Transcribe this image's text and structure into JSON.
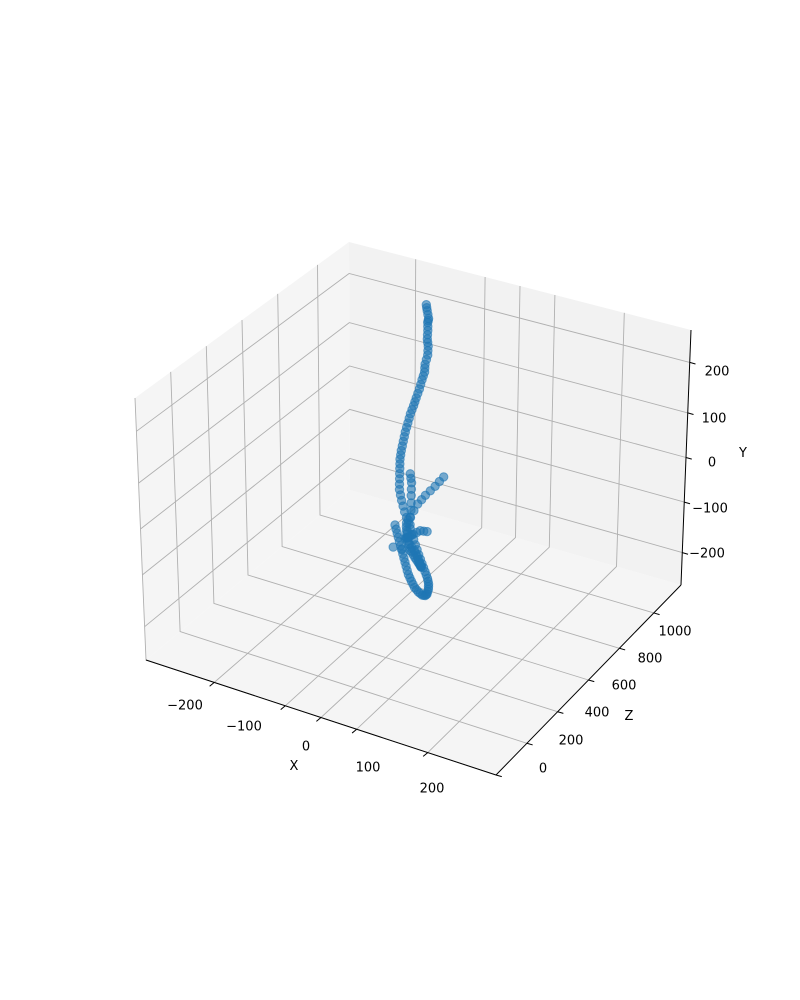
{
  "chart_data": {
    "type": "scatter",
    "projection": "3d",
    "title": "",
    "xlabel": "X",
    "ylabel": "Y",
    "zlabel": "Z",
    "x_ticks": [
      "−200",
      "−100",
      "0",
      "100",
      "200"
    ],
    "y_ticks": [
      "−200",
      "−100",
      "0",
      "100",
      "200"
    ],
    "z_ticks": [
      "0",
      "200",
      "400",
      "600",
      "800",
      "1000"
    ],
    "colors": {
      "points": "#1f77b4",
      "pane_back": "#f2f2f2",
      "pane_floor": "#f5f5f5",
      "grid": "#b0b0b0"
    },
    "grid": true,
    "series": [
      {
        "points": [
          [
            -110,
            240,
            30
          ],
          [
            -100,
            240,
            60
          ],
          [
            -92,
            232,
            80
          ],
          [
            -85,
            235,
            110
          ],
          [
            -75,
            232,
            145
          ],
          [
            -66,
            228,
            180
          ],
          [
            -56,
            225,
            210
          ],
          [
            -47,
            220,
            245
          ],
          [
            -40,
            215,
            285
          ],
          [
            -31,
            212,
            320
          ],
          [
            -24,
            210,
            360
          ],
          [
            -17,
            205,
            400
          ],
          [
            -11,
            200,
            440
          ],
          [
            -4,
            198,
            480
          ],
          [
            2,
            195,
            520
          ],
          [
            9,
            190,
            560
          ],
          [
            16,
            185,
            600
          ],
          [
            24,
            180,
            640
          ],
          [
            32,
            175,
            680
          ],
          [
            41,
            172,
            720
          ],
          [
            52,
            168,
            760
          ],
          [
            63,
            162,
            800
          ],
          [
            74,
            155,
            840
          ],
          [
            86,
            145,
            870
          ],
          [
            98,
            132,
            895
          ],
          [
            110,
            118,
            915
          ],
          [
            120,
            102,
            930
          ],
          [
            128,
            84,
            938
          ],
          [
            134,
            65,
            940
          ],
          [
            138,
            45,
            935
          ],
          [
            140,
            25,
            925
          ],
          [
            140,
            5,
            910
          ],
          [
            136,
            -15,
            890
          ],
          [
            130,
            -35,
            870
          ],
          [
            122,
            -55,
            850
          ],
          [
            112,
            -70,
            825
          ],
          [
            100,
            -82,
            800
          ],
          [
            85,
            -90,
            770
          ],
          [
            70,
            -95,
            740
          ],
          [
            55,
            -98,
            705
          ],
          [
            40,
            -100,
            670
          ],
          [
            25,
            -100,
            630
          ],
          [
            10,
            -100,
            590
          ],
          [
            -5,
            -100,
            550
          ],
          [
            -20,
            -100,
            510
          ],
          [
            -35,
            -100,
            470
          ],
          [
            -50,
            -100,
            430
          ],
          [
            80,
            20,
            700
          ],
          [
            60,
            5,
            670
          ],
          [
            40,
            -20,
            640
          ],
          [
            25,
            -40,
            610
          ],
          [
            8,
            -65,
            560
          ],
          [
            -8,
            -85,
            520
          ],
          [
            -5,
            -60,
            500
          ],
          [
            -12,
            -40,
            470
          ],
          [
            -20,
            -20,
            440
          ],
          [
            -25,
            0,
            420
          ],
          [
            -30,
            15,
            410
          ],
          [
            -18,
            -120,
            460
          ],
          [
            -15,
            -140,
            440
          ],
          [
            -16,
            -160,
            420
          ],
          [
            -18,
            -180,
            400
          ],
          [
            -24,
            -200,
            370
          ],
          [
            -32,
            -215,
            340
          ],
          [
            -42,
            -225,
            310
          ],
          [
            -54,
            -232,
            280
          ],
          [
            -68,
            -236,
            250
          ],
          [
            -82,
            -238,
            220
          ],
          [
            -95,
            -236,
            190
          ],
          [
            -105,
            -232,
            165
          ],
          [
            -112,
            -225,
            145
          ],
          [
            -116,
            -215,
            130
          ],
          [
            -110,
            -200,
            130
          ],
          [
            -100,
            -170,
            120
          ],
          [
            -90,
            -150,
            110
          ],
          [
            -78,
            -130,
            95
          ],
          [
            -68,
            -110,
            80
          ],
          [
            -70,
            -215,
            270
          ],
          [
            -90,
            -205,
            300
          ]
        ]
      }
    ]
  }
}
